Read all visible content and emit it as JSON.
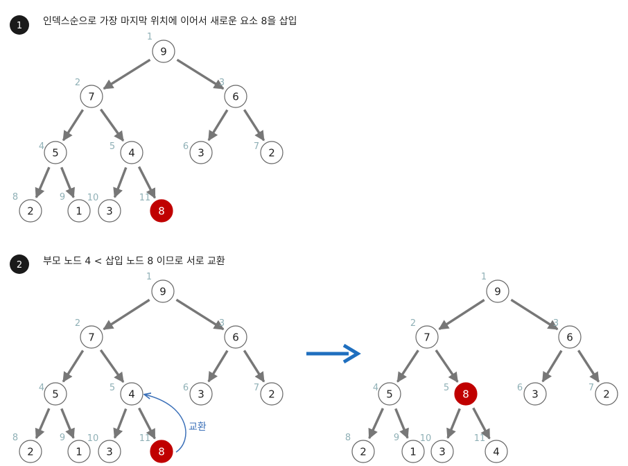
{
  "colors": {
    "edge": "#777777",
    "node_border": "#666666",
    "node_fill": "#ffffff",
    "highlight_fill": "#c00000",
    "index_text": "#8fb0b6",
    "badge_fill": "#1a1a1a",
    "swap_arrow": "#3b70b8",
    "big_arrow": "#1f6fbf"
  },
  "steps": [
    {
      "number": "1",
      "title": "인덱스순으로 가장 마지막 위치에 이어서 새로운 요소 8을 삽입"
    },
    {
      "number": "2",
      "title": "부모 노드 4 < 삽입 노드 8 이므로 서로 교환"
    }
  ],
  "swap_label": "교환",
  "trees": [
    {
      "name": "tree-step1",
      "nodes": [
        {
          "index": "1",
          "value": "9"
        },
        {
          "index": "2",
          "value": "7"
        },
        {
          "index": "3",
          "value": "6"
        },
        {
          "index": "4",
          "value": "5"
        },
        {
          "index": "5",
          "value": "4"
        },
        {
          "index": "6",
          "value": "3"
        },
        {
          "index": "7",
          "value": "2"
        },
        {
          "index": "8",
          "value": "2"
        },
        {
          "index": "9",
          "value": "1"
        },
        {
          "index": "10",
          "value": "3"
        },
        {
          "index": "11",
          "value": "8",
          "highlight": true
        }
      ]
    },
    {
      "name": "tree-step2-before",
      "nodes": [
        {
          "index": "1",
          "value": "9"
        },
        {
          "index": "2",
          "value": "7"
        },
        {
          "index": "3",
          "value": "6"
        },
        {
          "index": "4",
          "value": "5"
        },
        {
          "index": "5",
          "value": "4"
        },
        {
          "index": "6",
          "value": "3"
        },
        {
          "index": "7",
          "value": "2"
        },
        {
          "index": "8",
          "value": "2"
        },
        {
          "index": "9",
          "value": "1"
        },
        {
          "index": "10",
          "value": "3"
        },
        {
          "index": "11",
          "value": "8",
          "highlight": true
        }
      ]
    },
    {
      "name": "tree-step2-after",
      "nodes": [
        {
          "index": "1",
          "value": "9"
        },
        {
          "index": "2",
          "value": "7"
        },
        {
          "index": "3",
          "value": "6"
        },
        {
          "index": "4",
          "value": "5"
        },
        {
          "index": "5",
          "value": "8",
          "highlight": true
        },
        {
          "index": "6",
          "value": "3"
        },
        {
          "index": "7",
          "value": "2"
        },
        {
          "index": "8",
          "value": "2"
        },
        {
          "index": "9",
          "value": "1"
        },
        {
          "index": "10",
          "value": "3"
        },
        {
          "index": "11",
          "value": "4"
        }
      ]
    }
  ]
}
